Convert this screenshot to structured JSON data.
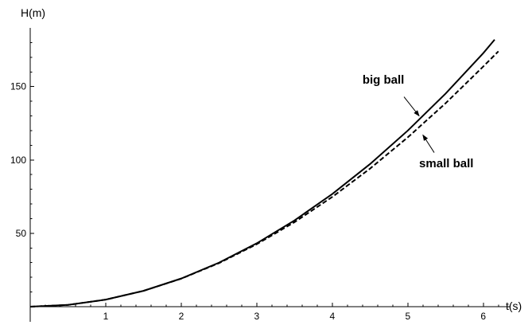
{
  "chart_data": {
    "type": "line",
    "title": "",
    "xlabel": "t(s)",
    "ylabel": "H(m)",
    "xlim": [
      0,
      6.35
    ],
    "ylim": [
      0,
      190
    ],
    "x_ticks": [
      1,
      2,
      3,
      4,
      5,
      6
    ],
    "x_tick_labels": [
      "1",
      "2",
      "3",
      "4",
      "5",
      "6"
    ],
    "x_minor_ticks": [
      0.2,
      0.4,
      0.6,
      0.8,
      1.2,
      1.4,
      1.6,
      1.8,
      2.2,
      2.4,
      2.6,
      2.8,
      3.2,
      3.4,
      3.6,
      3.8,
      4.2,
      4.4,
      4.6,
      4.8,
      5.2,
      5.4,
      5.6,
      5.8,
      6.2
    ],
    "y_ticks": [
      50,
      100,
      150
    ],
    "y_tick_labels": [
      "50",
      "100",
      "150"
    ],
    "y_minor_ticks": [
      10,
      20,
      30,
      40,
      60,
      70,
      80,
      90,
      110,
      120,
      130,
      140,
      160,
      170,
      180
    ],
    "grid": false,
    "series": [
      {
        "style": "solid",
        "color": "#000000",
        "x": [
          0,
          0.5,
          1,
          1.5,
          2,
          2.5,
          3,
          3.5,
          4,
          4.5,
          5,
          5.5,
          6,
          6.15
        ],
        "y": [
          0,
          1.2,
          4.8,
          10.8,
          19.2,
          30.0,
          43.2,
          58.8,
          76.8,
          97.2,
          120.0,
          145.2,
          172.8,
          182.0
        ]
      },
      {
        "style": "dashed",
        "color": "#000000",
        "x": [
          0,
          0.5,
          1,
          1.5,
          2,
          2.5,
          3,
          3.5,
          4,
          4.5,
          5,
          5.5,
          6,
          6.2
        ],
        "y": [
          0,
          1.2,
          4.8,
          10.8,
          19.1,
          29.7,
          42.6,
          57.6,
          74.8,
          94.1,
          115.4,
          138.6,
          163.7,
          174.0
        ]
      }
    ],
    "annotations": [
      {
        "text": "big ball",
        "label_x": 4.4,
        "label_y": 152,
        "arrow_from": [
          4.95,
          143
        ],
        "arrow_to": [
          5.15,
          130
        ],
        "anchor": "start"
      },
      {
        "text": "small ball",
        "label_x": 5.15,
        "label_y": 95,
        "arrow_from": [
          5.35,
          105
        ],
        "arrow_to": [
          5.2,
          117
        ],
        "anchor": "start"
      }
    ]
  }
}
